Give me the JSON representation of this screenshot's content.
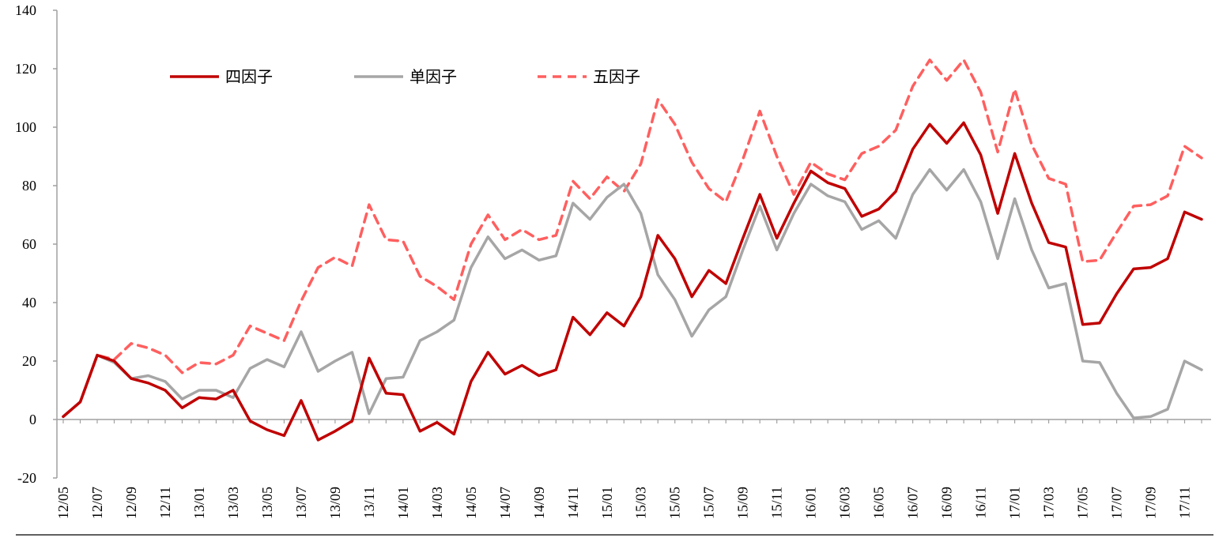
{
  "chart_data": {
    "type": "line",
    "title": "",
    "xlabel": "",
    "ylabel": "",
    "ylim": [
      -20,
      140
    ],
    "yticks": [
      -20,
      0,
      20,
      40,
      60,
      80,
      100,
      120,
      140
    ],
    "grid": false,
    "legend_position": "top-left",
    "x": [
      "12/05",
      "12/06",
      "12/07",
      "12/08",
      "12/09",
      "12/10",
      "12/11",
      "12/12",
      "13/01",
      "13/02",
      "13/03",
      "13/04",
      "13/05",
      "13/06",
      "13/07",
      "13/08",
      "13/09",
      "13/10",
      "13/11",
      "13/12",
      "14/01",
      "14/02",
      "14/03",
      "14/04",
      "14/05",
      "14/06",
      "14/07",
      "14/08",
      "14/09",
      "14/10",
      "14/11",
      "14/12",
      "15/01",
      "15/02",
      "15/03",
      "15/04",
      "15/05",
      "15/06",
      "15/07",
      "15/08",
      "15/09",
      "15/10",
      "15/11",
      "15/12",
      "16/01",
      "16/02",
      "16/03",
      "16/04",
      "16/05",
      "16/06",
      "16/07",
      "16/08",
      "16/09",
      "16/10",
      "16/11",
      "16/12",
      "17/01",
      "17/02",
      "17/03",
      "17/04",
      "17/05",
      "17/06",
      "17/07",
      "17/08",
      "17/09",
      "17/10",
      "17/11",
      "17/12"
    ],
    "xtick_labels": [
      "12/05",
      "12/07",
      "12/09",
      "12/11",
      "13/01",
      "13/03",
      "13/05",
      "13/07",
      "13/09",
      "13/11",
      "14/01",
      "14/03",
      "14/05",
      "14/07",
      "14/09",
      "14/11",
      "15/01",
      "15/03",
      "15/05",
      "15/07",
      "15/09",
      "15/11",
      "16/01",
      "16/03",
      "16/05",
      "16/07",
      "16/09",
      "16/11",
      "17/01",
      "17/03",
      "17/05",
      "17/07",
      "17/09",
      "17/11"
    ],
    "series": [
      {
        "name": "四因子",
        "color": "#c00000",
        "style": "solid",
        "values": [
          1,
          6,
          22,
          20,
          14,
          12.5,
          10,
          4,
          7.5,
          7,
          10,
          -0.5,
          -3.5,
          -5.5,
          6.5,
          -7,
          -4,
          -0.5,
          21,
          9,
          8.5,
          -4,
          -1,
          -5,
          13,
          23,
          15.5,
          18.5,
          15,
          17,
          35,
          29,
          36.5,
          32,
          42,
          63,
          55,
          42,
          51,
          46.5,
          62,
          77,
          62,
          74,
          85,
          81,
          79,
          69.5,
          72,
          78,
          92.5,
          101,
          94.5,
          101.5,
          90.5,
          70.5,
          91,
          74,
          60.5,
          59,
          32.5,
          33,
          43,
          51.5,
          52,
          55,
          71,
          68.5
        ]
      },
      {
        "name": "单因子",
        "color": "#a6a6a6",
        "style": "solid",
        "values": [
          1,
          6,
          22,
          19.5,
          14,
          15,
          13,
          7,
          10,
          10,
          7.5,
          17.5,
          20.5,
          18,
          30,
          16.5,
          20,
          23,
          2,
          14,
          14.5,
          27,
          30,
          34,
          52,
          62.5,
          55,
          58,
          54.5,
          56,
          74,
          68.5,
          76,
          80.5,
          70.5,
          49.5,
          41,
          28.5,
          37.5,
          42,
          58,
          73,
          58,
          70.5,
          80.5,
          76.5,
          74.5,
          65,
          68,
          62,
          77,
          85.5,
          78.5,
          85.5,
          74.5,
          55,
          75.5,
          58,
          45,
          46.5,
          20,
          19.5,
          9,
          0.5,
          1,
          3.5,
          20,
          17
        ]
      },
      {
        "name": "五因子",
        "color": "#ff5f5f",
        "style": "dashed",
        "values": [
          1,
          6,
          22,
          20.5,
          26,
          24.5,
          22,
          16,
          19.5,
          19,
          22,
          32,
          29.5,
          27,
          40.5,
          52,
          55.5,
          52.5,
          73.5,
          61.5,
          61,
          49,
          45.5,
          41,
          60,
          70,
          61.5,
          65,
          61.5,
          63,
          81.5,
          75.5,
          83,
          78,
          87.5,
          109.5,
          101,
          88,
          79,
          74.5,
          89,
          105.5,
          90,
          77,
          88,
          84,
          82,
          91,
          93.5,
          99,
          114,
          123,
          116,
          123,
          112,
          91.5,
          113,
          94,
          82.5,
          80.5,
          54,
          54.5,
          64,
          73,
          73.5,
          76.5,
          93.5,
          89.5
        ]
      }
    ]
  }
}
